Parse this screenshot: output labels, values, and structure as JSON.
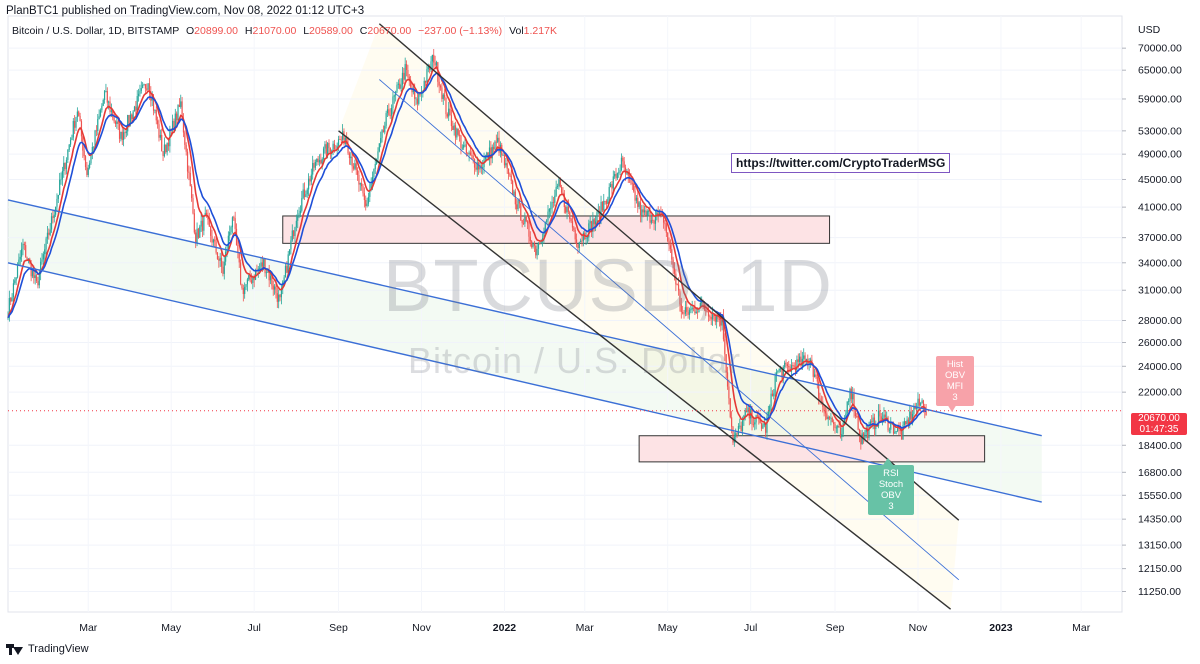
{
  "publisher_line": "PlanBTC1 published on TradingView.com, Nov 08, 2022 01:12 UTC+3",
  "legend": {
    "symbol": "Bitcoin / U.S. Dollar, 1D, BITSTAMP",
    "open_label": "O",
    "open": "20899.00",
    "high_label": "H",
    "high": "21070.00",
    "low_label": "L",
    "low": "20589.00",
    "close_label": "C",
    "close": "20670.00",
    "change": "−237.00 (−1.13%)",
    "vol_label": "Vol",
    "vol": "1.217K"
  },
  "watermark": {
    "ticker": "BTCUSD, 1D",
    "name": "Bitcoin / U.S. Dollar"
  },
  "annotation_link": "https://twitter.com/CryptoTraderMSG",
  "price_tag": {
    "price": "20670.00",
    "countdown": "01:47:35"
  },
  "notes": {
    "hist": [
      "Hist",
      "OBV",
      "MFI",
      "3"
    ],
    "rsi": [
      "RSI",
      "Stoch",
      "OBV",
      "3"
    ]
  },
  "footer_brand": "TradingView",
  "colors": {
    "up": "#26a69a",
    "down": "#ef5350",
    "ma_fast": "#e53935",
    "ma_slow": "#1e4fd8",
    "channel_line": "#333333",
    "trend_line": "#3b6fd6",
    "zone_fill": "#fde3e5",
    "price_tag": "#f23645",
    "link_border": "#7e57c2"
  },
  "chart_data": {
    "type": "line",
    "title": "",
    "currency_label": "USD",
    "y_scale": "log",
    "ylim": [
      10500,
      78000
    ],
    "y_ticks": [
      "70000.00",
      "65000.00",
      "59000.00",
      "53000.00",
      "49000.00",
      "45000.00",
      "41000.00",
      "37000.00",
      "34000.00",
      "31000.00",
      "28000.00",
      "26000.00",
      "24000.00",
      "22000.00",
      "18400.00",
      "16800.00",
      "15550.00",
      "14350.00",
      "13150.00",
      "12150.00",
      "11250.00"
    ],
    "x_ticks": [
      "Mar",
      "May",
      "Jul",
      "Sep",
      "Nov",
      "2022",
      "Mar",
      "May",
      "Jul",
      "Sep",
      "Nov",
      "2023",
      "Mar"
    ],
    "xlim": [
      "2021-01-01",
      "2023-03-31"
    ],
    "last_price": 20670,
    "price_path": [
      {
        "x": "2021-01-01",
        "y": 29000
      },
      {
        "x": "2021-01-12",
        "y": 36000
      },
      {
        "x": "2021-01-22",
        "y": 31500
      },
      {
        "x": "2021-02-08",
        "y": 44000
      },
      {
        "x": "2021-02-21",
        "y": 57000
      },
      {
        "x": "2021-02-28",
        "y": 46000
      },
      {
        "x": "2021-03-13",
        "y": 60000
      },
      {
        "x": "2021-03-25",
        "y": 52000
      },
      {
        "x": "2021-04-14",
        "y": 63000
      },
      {
        "x": "2021-04-25",
        "y": 49000
      },
      {
        "x": "2021-05-08",
        "y": 58000
      },
      {
        "x": "2021-05-19",
        "y": 37000
      },
      {
        "x": "2021-05-26",
        "y": 39500
      },
      {
        "x": "2021-06-08",
        "y": 33000
      },
      {
        "x": "2021-06-15",
        "y": 40000
      },
      {
        "x": "2021-06-22",
        "y": 31000
      },
      {
        "x": "2021-07-08",
        "y": 34000
      },
      {
        "x": "2021-07-20",
        "y": 29800
      },
      {
        "x": "2021-08-01",
        "y": 40000
      },
      {
        "x": "2021-08-14",
        "y": 47000
      },
      {
        "x": "2021-08-22",
        "y": 49500
      },
      {
        "x": "2021-09-06",
        "y": 52000
      },
      {
        "x": "2021-09-21",
        "y": 41000
      },
      {
        "x": "2021-10-06",
        "y": 55000
      },
      {
        "x": "2021-10-20",
        "y": 65000
      },
      {
        "x": "2021-10-28",
        "y": 58000
      },
      {
        "x": "2021-11-10",
        "y": 68000
      },
      {
        "x": "2021-11-19",
        "y": 57000
      },
      {
        "x": "2021-12-04",
        "y": 49000
      },
      {
        "x": "2021-12-14",
        "y": 47000
      },
      {
        "x": "2021-12-27",
        "y": 51000
      },
      {
        "x": "2022-01-10",
        "y": 41500
      },
      {
        "x": "2022-01-24",
        "y": 35500
      },
      {
        "x": "2022-02-10",
        "y": 44000
      },
      {
        "x": "2022-02-24",
        "y": 36500
      },
      {
        "x": "2022-03-10",
        "y": 39500
      },
      {
        "x": "2022-03-28",
        "y": 47500
      },
      {
        "x": "2022-04-12",
        "y": 40000
      },
      {
        "x": "2022-04-28",
        "y": 39500
      },
      {
        "x": "2022-05-12",
        "y": 28500
      },
      {
        "x": "2022-05-25",
        "y": 29500
      },
      {
        "x": "2022-06-10",
        "y": 28000
      },
      {
        "x": "2022-06-18",
        "y": 18500
      },
      {
        "x": "2022-06-28",
        "y": 20500
      },
      {
        "x": "2022-07-12",
        "y": 19500
      },
      {
        "x": "2022-07-20",
        "y": 23500
      },
      {
        "x": "2022-07-28",
        "y": 23800
      },
      {
        "x": "2022-08-14",
        "y": 24600
      },
      {
        "x": "2022-08-22",
        "y": 21200
      },
      {
        "x": "2022-09-06",
        "y": 18800
      },
      {
        "x": "2022-09-12",
        "y": 22500
      },
      {
        "x": "2022-09-20",
        "y": 18800
      },
      {
        "x": "2022-10-04",
        "y": 20300
      },
      {
        "x": "2022-10-20",
        "y": 19100
      },
      {
        "x": "2022-10-29",
        "y": 20800
      },
      {
        "x": "2022-11-05",
        "y": 21300
      },
      {
        "x": "2022-11-07",
        "y": 20670
      }
    ],
    "resistance_zone": {
      "x0": "2021-07-22",
      "x1": "2022-08-28",
      "y0": 36300,
      "y1": 39800
    },
    "support_zone": {
      "x0": "2022-04-10",
      "x1": "2022-12-20",
      "y0": 17400,
      "y1": 19000
    },
    "channel_lines": [
      {
        "x0": "2021-10-01",
        "y0": 76000,
        "x1": "2022-12-01",
        "y1": 14300
      },
      {
        "x0": "2021-09-01",
        "y0": 53000,
        "x1": "2022-11-25",
        "y1": 10600
      }
    ],
    "trend_lines": [
      {
        "x0": "2021-01-01",
        "y0": 42000,
        "x1": "2023-01-31",
        "y1": 19000,
        "width": 1.4
      },
      {
        "x0": "2021-01-01",
        "y0": 34000,
        "x1": "2023-01-31",
        "y1": 15200,
        "width": 1.4
      },
      {
        "x0": "2021-10-01",
        "y0": 63000,
        "x1": "2022-12-01",
        "y1": 11700,
        "width": 0.9
      }
    ]
  }
}
